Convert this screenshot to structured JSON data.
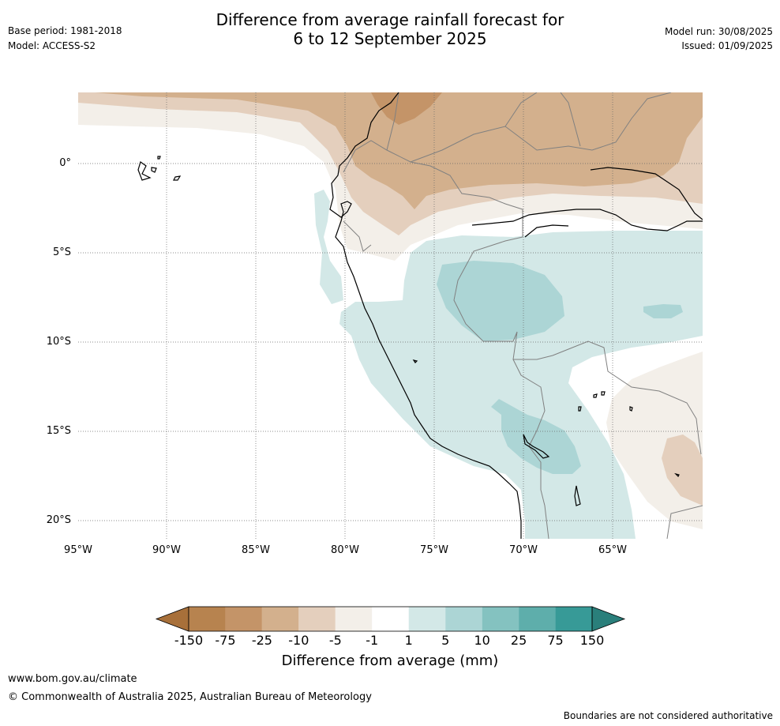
{
  "header": {
    "title_line1": "Difference from average rainfall forecast for",
    "title_line2": "6 to 12 September 2025",
    "base_period": "Base period: 1981-2018",
    "model": "Model: ACCESS-S2",
    "model_run": "Model run: 30/08/2025",
    "issued": "Issued: 01/09/2025"
  },
  "map": {
    "lat_labels": [
      "0°",
      "5°S",
      "10°S",
      "15°S",
      "20°S"
    ],
    "lon_labels": [
      "95°W",
      "90°W",
      "85°W",
      "80°W",
      "75°W",
      "70°W",
      "65°W"
    ]
  },
  "legend": {
    "title": "Difference from average (mm)",
    "ticks": [
      "-150",
      "-75",
      "-25",
      "-10",
      "-5",
      "-1",
      "1",
      "5",
      "10",
      "25",
      "75",
      "150"
    ],
    "colors": [
      "#a8703a",
      "#b7834f",
      "#c49468",
      "#d3b08d",
      "#e4cfbd",
      "#f3efe9",
      "#ffffff",
      "#d3e8e7",
      "#acd5d5",
      "#84c2c0",
      "#5eaeab",
      "#379a97",
      "#2a7f7b"
    ]
  },
  "footer": {
    "url": "www.bom.gov.au/climate",
    "copyright": "© Commonwealth of Australia 2025, Australian Bureau of Meteorology",
    "note": "Boundaries are not considered authoritative"
  }
}
